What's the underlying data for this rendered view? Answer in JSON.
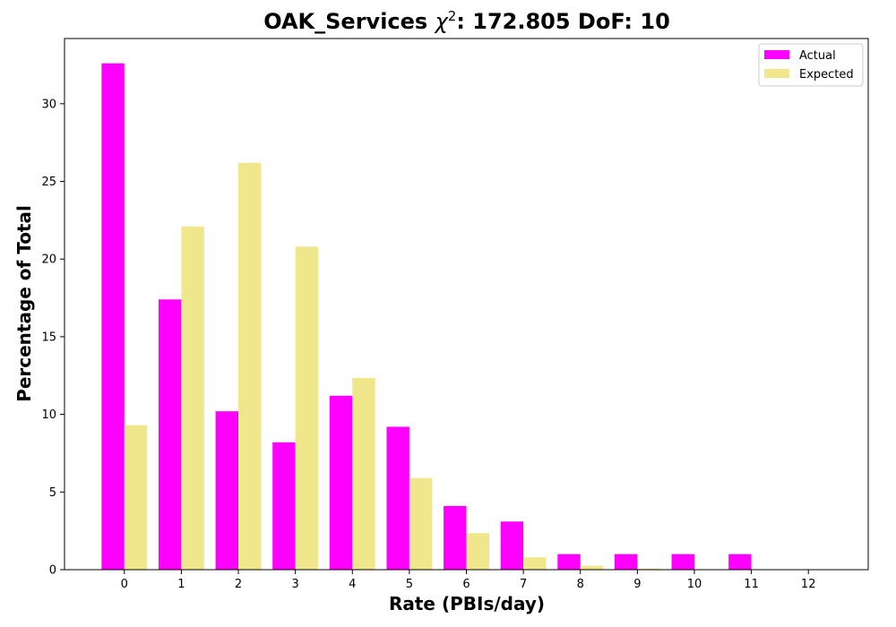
{
  "chart_data": {
    "type": "bar",
    "title_prefix": "OAK_Services ",
    "title_chi": "χ",
    "title_sup": "2",
    "title_suffix": ": 172.805 DoF: 10",
    "xlabel": "Rate (PBIs/day)",
    "ylabel": "Percentage of Total",
    "categories": [
      "0",
      "1",
      "2",
      "3",
      "4",
      "5",
      "6",
      "7",
      "8",
      "9",
      "10",
      "11",
      "12"
    ],
    "xlim": [
      -1.05,
      13.05
    ],
    "ylim": [
      0,
      34.2
    ],
    "yticks": [
      0,
      5,
      10,
      15,
      20,
      25,
      30
    ],
    "grid": false,
    "legend_position": "top-right",
    "series": [
      {
        "name": "Actual",
        "color": "#ff00ff",
        "values": [
          32.6,
          17.4,
          10.2,
          8.2,
          11.2,
          9.2,
          4.1,
          3.1,
          1.0,
          1.0,
          1.0,
          1.0,
          0
        ]
      },
      {
        "name": "Expected",
        "color": "#f0e68c",
        "values": [
          9.3,
          22.1,
          26.2,
          20.8,
          12.35,
          5.9,
          2.35,
          0.8,
          0.25,
          0.07,
          0.02,
          0.0,
          0.0
        ]
      }
    ]
  }
}
